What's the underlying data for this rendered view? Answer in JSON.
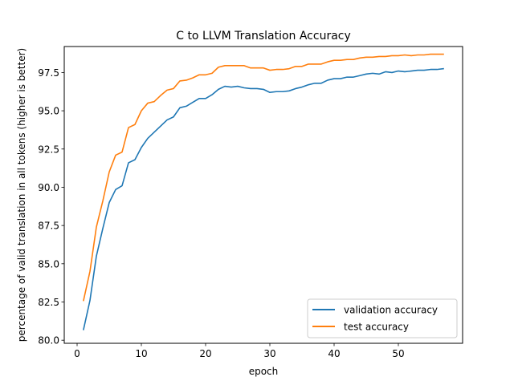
{
  "chart_data": {
    "type": "line",
    "title": "C to LLVM Translation Accuracy",
    "xlabel": "epoch",
    "ylabel": "percentage of valid translation in all tokens (higher is better)",
    "xlim": [
      -2,
      60
    ],
    "ylim": [
      79.8,
      99.2
    ],
    "x_ticks": [
      0,
      10,
      20,
      30,
      40,
      50
    ],
    "y_ticks": [
      80.0,
      82.5,
      85.0,
      87.5,
      90.0,
      92.5,
      95.0,
      97.5
    ],
    "x_tick_labels": [
      "0",
      "10",
      "20",
      "30",
      "40",
      "50"
    ],
    "y_tick_labels": [
      "80.0",
      "82.5",
      "85.0",
      "87.5",
      "90.0",
      "92.5",
      "95.0",
      "97.5"
    ],
    "grid": false,
    "legend_position": "lower-right",
    "x": [
      1,
      2,
      3,
      4,
      5,
      6,
      7,
      8,
      9,
      10,
      11,
      12,
      13,
      14,
      15,
      16,
      17,
      18,
      19,
      20,
      21,
      22,
      23,
      24,
      25,
      26,
      27,
      28,
      29,
      30,
      31,
      32,
      33,
      34,
      35,
      36,
      37,
      38,
      39,
      40,
      41,
      42,
      43,
      44,
      45,
      46,
      47,
      48,
      49,
      50,
      51,
      52,
      53,
      54,
      55,
      56,
      57
    ],
    "series": [
      {
        "name": "validation accuracy",
        "color": "#1f77b4",
        "values": [
          80.7,
          82.6,
          85.5,
          87.3,
          89.0,
          89.85,
          90.1,
          91.6,
          91.8,
          92.6,
          93.2,
          93.6,
          94.0,
          94.4,
          94.6,
          95.2,
          95.3,
          95.55,
          95.8,
          95.8,
          96.05,
          96.4,
          96.6,
          96.55,
          96.6,
          96.5,
          96.45,
          96.45,
          96.4,
          96.2,
          96.25,
          96.25,
          96.3,
          96.45,
          96.55,
          96.7,
          96.8,
          96.8,
          97.0,
          97.1,
          97.1,
          97.2,
          97.2,
          97.3,
          97.4,
          97.45,
          97.4,
          97.55,
          97.5,
          97.6,
          97.55,
          97.6,
          97.65,
          97.65,
          97.7,
          97.7,
          97.75
        ]
      },
      {
        "name": "test accuracy",
        "color": "#ff7f0e",
        "values": [
          82.6,
          84.5,
          87.4,
          89.1,
          91.0,
          92.1,
          92.3,
          93.9,
          94.1,
          95.0,
          95.5,
          95.6,
          96.0,
          96.35,
          96.45,
          96.95,
          97.0,
          97.15,
          97.35,
          97.35,
          97.45,
          97.85,
          97.95,
          97.95,
          97.95,
          97.95,
          97.8,
          97.8,
          97.8,
          97.65,
          97.7,
          97.7,
          97.75,
          97.9,
          97.9,
          98.05,
          98.05,
          98.05,
          98.2,
          98.3,
          98.3,
          98.35,
          98.35,
          98.45,
          98.5,
          98.5,
          98.55,
          98.55,
          98.6,
          98.6,
          98.65,
          98.6,
          98.65,
          98.65,
          98.7,
          98.7,
          98.7
        ]
      }
    ]
  }
}
